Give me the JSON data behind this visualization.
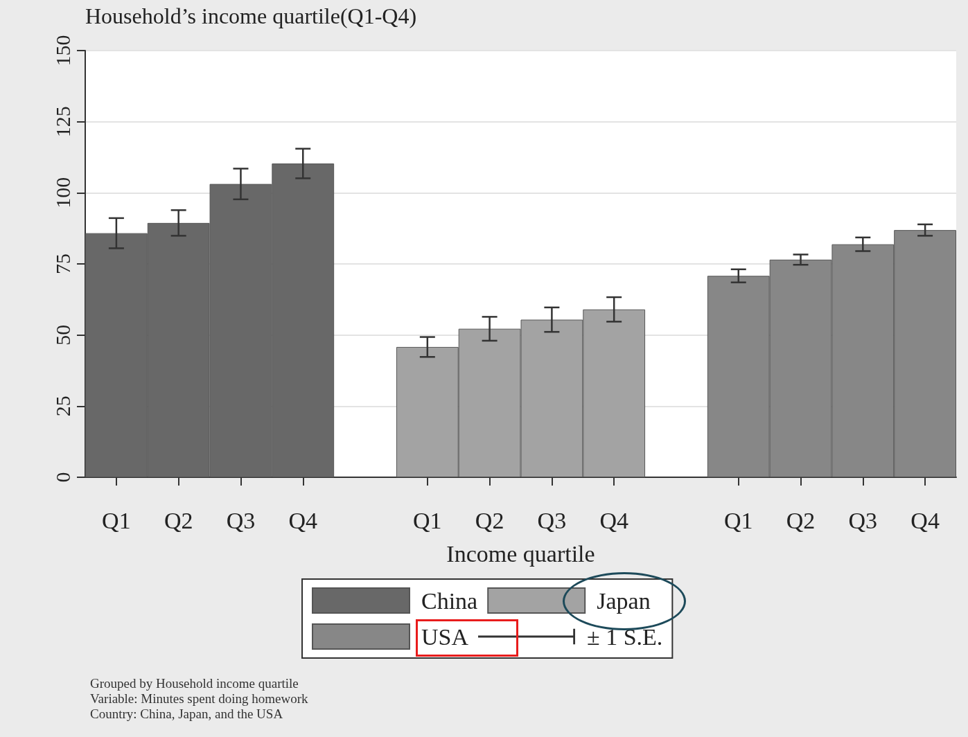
{
  "chart_data": {
    "type": "bar",
    "title": "Household’s income quartile(Q1-Q4)",
    "xlabel": "Income quartile",
    "categories": [
      "Q1",
      "Q2",
      "Q3",
      "Q4",
      null,
      "Q1",
      "Q2",
      "Q3",
      "Q4",
      null,
      "Q1",
      "Q2",
      "Q3",
      "Q4"
    ],
    "series": [
      {
        "name": "China",
        "color": "#686868",
        "values": [
          85.8,
          89.4,
          103.1,
          110.3,
          null,
          null,
          null,
          null,
          null,
          null,
          null,
          null,
          null,
          null
        ],
        "errors": [
          5.3,
          4.5,
          5.4,
          5.2,
          null,
          null,
          null,
          null,
          null,
          null,
          null,
          null,
          null,
          null
        ]
      },
      {
        "name": "Japan",
        "color": "#a3a3a3",
        "values": [
          null,
          null,
          null,
          null,
          null,
          45.8,
          52.2,
          55.4,
          59.0,
          null,
          null,
          null,
          null,
          null
        ],
        "errors": [
          null,
          null,
          null,
          null,
          null,
          3.5,
          4.2,
          4.3,
          4.3,
          null,
          null,
          null,
          null,
          null
        ]
      },
      {
        "name": "USA",
        "color": "#878787",
        "values": [
          null,
          null,
          null,
          null,
          null,
          null,
          null,
          null,
          null,
          null,
          70.8,
          76.5,
          81.9,
          86.9
        ],
        "errors": [
          null,
          null,
          null,
          null,
          null,
          null,
          null,
          null,
          null,
          null,
          2.3,
          1.8,
          2.4,
          2.0
        ]
      }
    ],
    "stacked": true,
    "ylim": [
      0,
      150
    ],
    "yticks": [
      0,
      25,
      50,
      75,
      100,
      125,
      150
    ],
    "grid": "y",
    "legend": "bottom",
    "annotations": [
      "± 1 S.E.",
      "Grouped by Household income quartile",
      "Variable: Minutes spent doing homework",
      "Country: China, Japan, and the USA"
    ]
  }
}
